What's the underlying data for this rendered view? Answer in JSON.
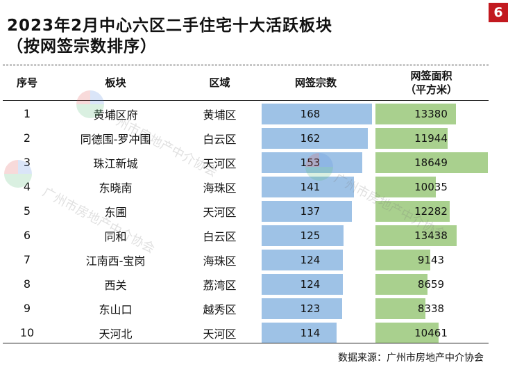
{
  "title": {
    "line1": "2023年2月中心六区二手住宅十大活跃板块",
    "line2": "（按网签宗数排序）"
  },
  "page_number": "6",
  "table": {
    "headers": {
      "seq": "序号",
      "block": "板块",
      "district": "区域",
      "count": "网签宗数",
      "area_line1": "网签面积",
      "area_line2": "（平方米）"
    },
    "rows": [
      {
        "seq": "1",
        "block": "黄埔区府",
        "district": "黄埔区",
        "count": 168,
        "area": 13380
      },
      {
        "seq": "2",
        "block": "同德围-罗冲围",
        "district": "白云区",
        "count": 162,
        "area": 11944
      },
      {
        "seq": "3",
        "block": "珠江新城",
        "district": "天河区",
        "count": 153,
        "area": 18649
      },
      {
        "seq": "4",
        "block": "东晓南",
        "district": "海珠区",
        "count": 141,
        "area": 10035
      },
      {
        "seq": "5",
        "block": "东圃",
        "district": "天河区",
        "count": 137,
        "area": 12282
      },
      {
        "seq": "6",
        "block": "同和",
        "district": "白云区",
        "count": 125,
        "area": 13438
      },
      {
        "seq": "7",
        "block": "江南西-宝岗",
        "district": "海珠区",
        "count": 124,
        "area": 9143
      },
      {
        "seq": "8",
        "block": "西关",
        "district": "荔湾区",
        "count": 124,
        "area": 8659
      },
      {
        "seq": "9",
        "block": "东山口",
        "district": "越秀区",
        "count": 123,
        "area": 8338
      },
      {
        "seq": "10",
        "block": "天河北",
        "district": "天河区",
        "count": 114,
        "area": 10461
      }
    ]
  },
  "source": "数据来源：广州市房地产中介协会",
  "watermark": {
    "name_cn": "广州市房地产中介协会",
    "name_en": "Guangzhou Association of Real Estate Agents"
  },
  "colors": {
    "count_bar": "#9ec2e6",
    "area_bar": "#a9d08e",
    "badge": "#c2191f"
  }
}
